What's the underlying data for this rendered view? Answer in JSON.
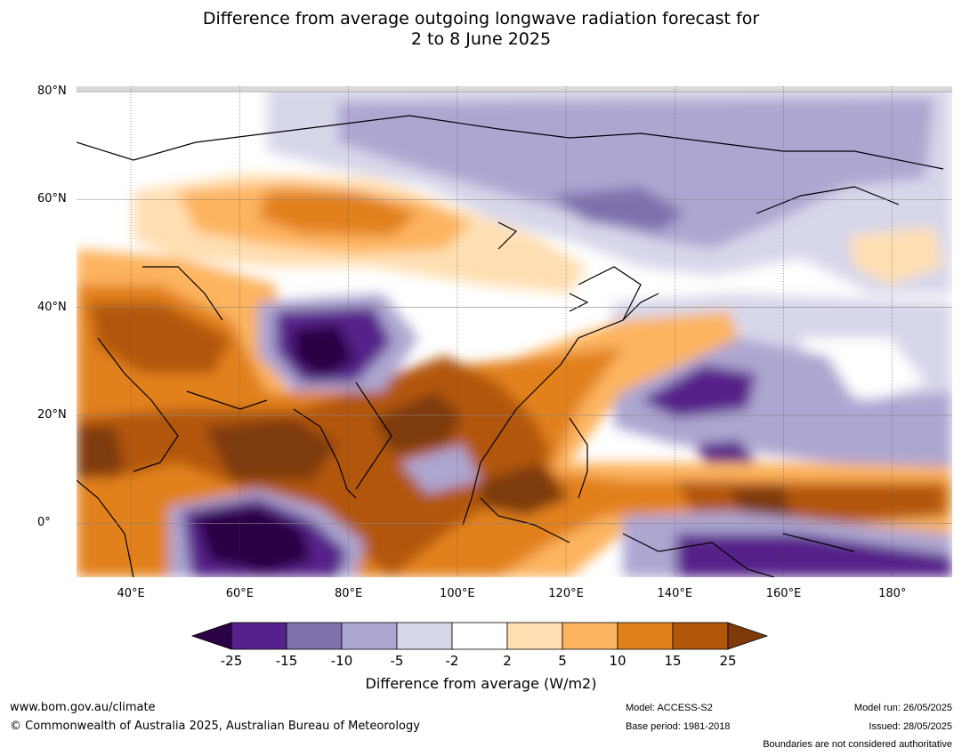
{
  "title": {
    "line1": "Difference from average outgoing longwave radiation forecast for",
    "line2": "2 to 8 June 2025"
  },
  "map": {
    "lat_labels": [
      "80°N",
      "60°N",
      "40°N",
      "20°N",
      "0°"
    ],
    "lon_labels": [
      "40°E",
      "60°E",
      "80°E",
      "100°E",
      "120°E",
      "140°E",
      "160°E",
      "180°"
    ],
    "lat_values": [
      80,
      60,
      40,
      20,
      0
    ],
    "lon_values": [
      40,
      60,
      80,
      100,
      120,
      140,
      160,
      180
    ],
    "extent": {
      "lon_min": 30,
      "lon_max": 191,
      "lat_min": -10,
      "lat_max": 81
    }
  },
  "colorbar": {
    "ticks": [
      "-25",
      "-15",
      "-10",
      "-5",
      "-2",
      "2",
      "5",
      "10",
      "15",
      "25"
    ],
    "colors": [
      "#2b0045",
      "#56218a",
      "#7f70ad",
      "#ada6d1",
      "#d7d7ea",
      "#ffffff",
      "#ffdfb2",
      "#fdb45f",
      "#e2811a",
      "#b25609",
      "#7e3a08"
    ],
    "title": "Difference from average (W/m2)"
  },
  "footer": {
    "url": "www.bom.gov.au/climate",
    "copyright": "© Commonwealth of Australia 2025, Australian Bureau of Meteorology",
    "model": "Model: ACCESS-S2",
    "base_period": "Base period: 1981-2018",
    "model_run": "Model run: 26/05/2025",
    "issued": "Issued: 28/05/2025",
    "disclaimer": "Boundaries are not considered authoritative"
  }
}
